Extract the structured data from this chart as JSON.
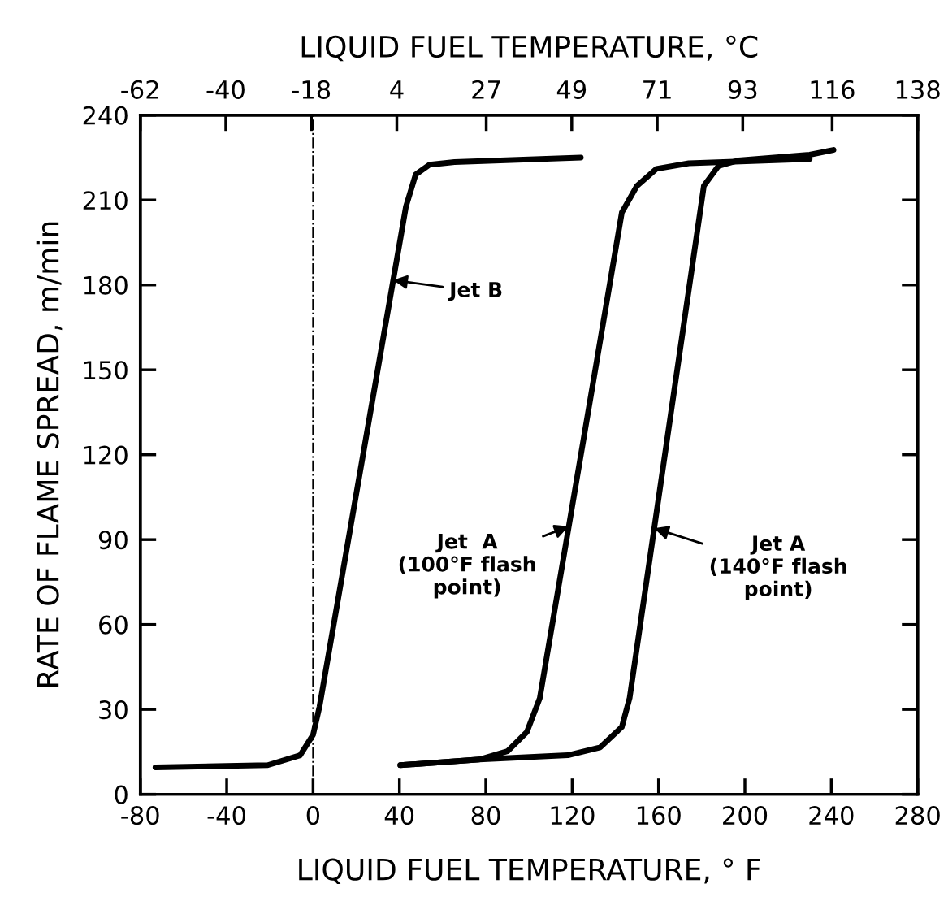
{
  "chart_data": {
    "type": "line",
    "title": "LIQUID FUEL TEMPERATURE, °C",
    "xlabel": "LIQUID FUEL TEMPERATURE, ° F",
    "ylabel": "RATE OF FLAME SPREAD, m/min",
    "xlim": [
      -80,
      280
    ],
    "xticks": [
      -80,
      -40,
      0,
      40,
      80,
      120,
      160,
      200,
      240,
      280
    ],
    "x2lim": [
      -62,
      138
    ],
    "x2ticks": [
      -62,
      -40,
      -18,
      4,
      27,
      49,
      71,
      93,
      116,
      138
    ],
    "ylim": [
      0,
      240
    ],
    "yticks": [
      0,
      30,
      60,
      90,
      120,
      150,
      180,
      210,
      240
    ],
    "grid": false,
    "legend": false,
    "marker": "none",
    "line_style": "solid",
    "series": [
      {
        "color": "#000000",
        "x": [
          -73,
          -40,
          -21,
          -6,
          0,
          3,
          43,
          47.5,
          54,
          65.5,
          124
        ],
        "values": [
          9.5,
          10,
          10.3,
          13.8,
          21,
          31,
          207.6,
          219,
          222.5,
          223.4,
          225
        ]
      },
      {
        "color": "#000000",
        "x": [
          40.4,
          77,
          90,
          99,
          105,
          143,
          150,
          159,
          174,
          230
        ],
        "values": [
          10.3,
          12.3,
          15.2,
          22,
          34,
          205.6,
          215,
          221,
          223,
          224.5
        ]
      },
      {
        "color": "#000000",
        "x": [
          40.4,
          77,
          118,
          133,
          143,
          146.6,
          181,
          187.7,
          197,
          230,
          241
        ],
        "values": [
          10.3,
          12.3,
          13.8,
          16.6,
          23.8,
          34,
          215,
          222,
          224,
          226,
          227.7
        ]
      }
    ],
    "ref_lines": [
      {
        "axis": "x",
        "value": 0,
        "color": "#000000",
        "line_style": "dashdot"
      }
    ],
    "annotations": [
      {
        "text": "Jet B",
        "x": 37,
        "y": 181.7
      },
      {
        "text": "Jet  A\n(100°F flash\npoint)",
        "x": 118.4,
        "y": 94.7
      },
      {
        "text": "Jet A\n(140°F flash\npoint)",
        "x": 158,
        "y": 94
      }
    ]
  }
}
